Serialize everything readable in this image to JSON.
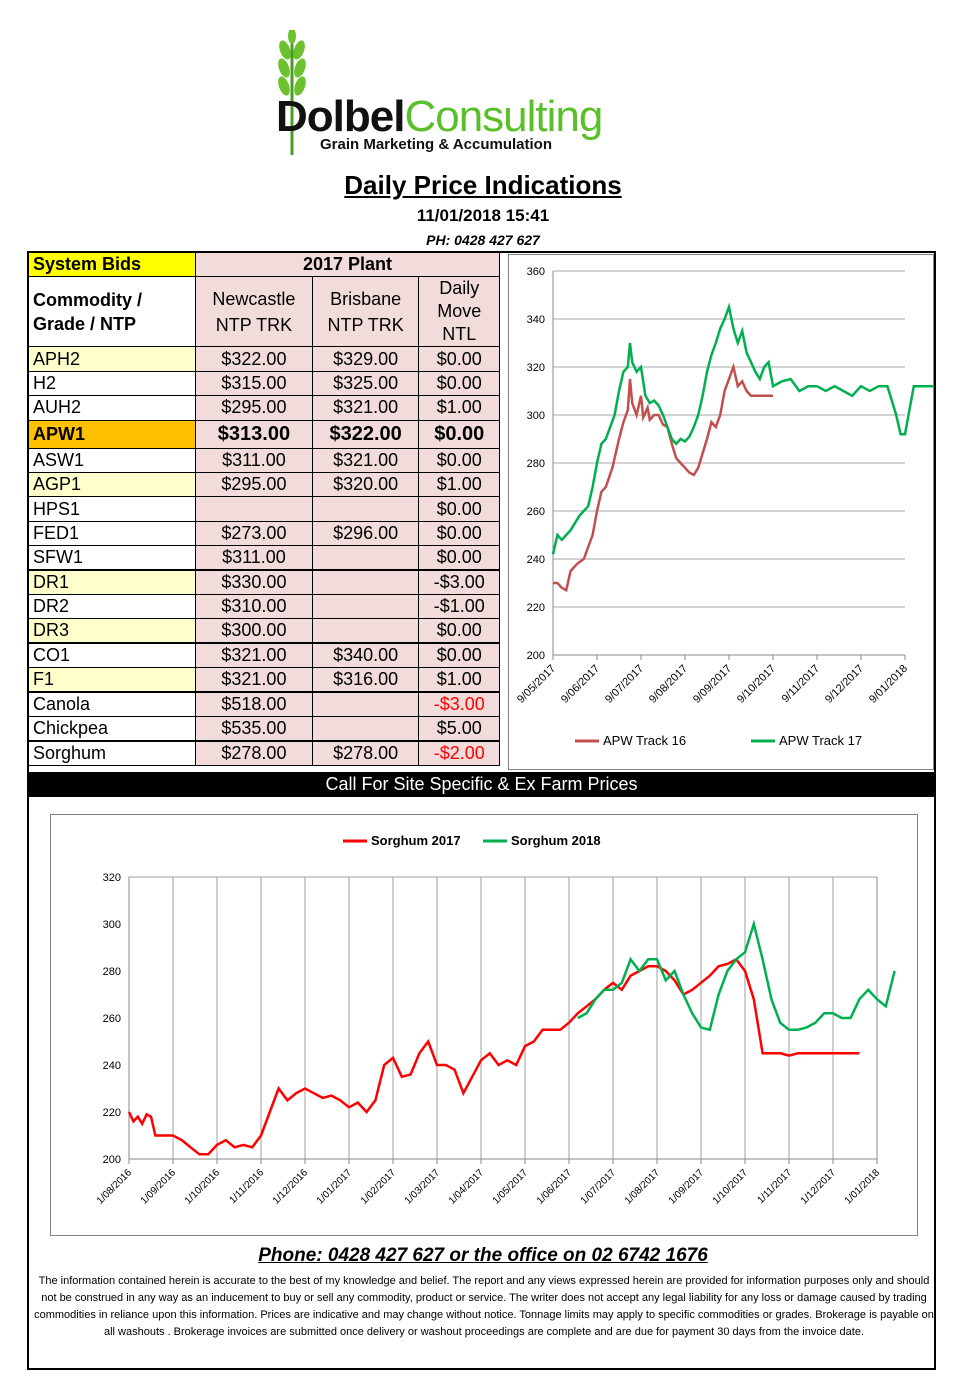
{
  "header": {
    "brand_bold": "Dolbel",
    "brand_light": "Consulting",
    "tagline": "Grain Marketing & Accumulation",
    "title": "Daily Price Indications",
    "datetime": "11/01/2018 15:41",
    "phone": "PH: 0428 427 627"
  },
  "table": {
    "system_bids": "System Bids",
    "plant": "2017 Plant",
    "col_commodity": "Commodity / Grade / NTP",
    "col_newcastle": "Newcastle NTP TRK",
    "col_brisbane": "Brisbane NTP TRK",
    "col_move": "Daily Move NTL",
    "rows": [
      {
        "grade": "APH2",
        "newcastle": "$322.00",
        "brisbane": "$329.00",
        "move": "$0.00"
      },
      {
        "grade": "H2",
        "newcastle": "$315.00",
        "brisbane": "$325.00",
        "move": "$0.00"
      },
      {
        "grade": "AUH2",
        "newcastle": "$295.00",
        "brisbane": "$321.00",
        "move": "$1.00"
      },
      {
        "grade": "APW1",
        "newcastle": "$313.00",
        "brisbane": "$322.00",
        "move": "$0.00"
      },
      {
        "grade": "ASW1",
        "newcastle": "$311.00",
        "brisbane": "$321.00",
        "move": "$0.00"
      },
      {
        "grade": "AGP1",
        "newcastle": "$295.00",
        "brisbane": "$320.00",
        "move": "$1.00"
      },
      {
        "grade": "HPS1",
        "newcastle": "",
        "brisbane": "",
        "move": "$0.00"
      },
      {
        "grade": "FED1",
        "newcastle": "$273.00",
        "brisbane": "$296.00",
        "move": "$0.00"
      },
      {
        "grade": "SFW1",
        "newcastle": "$311.00",
        "brisbane": "",
        "move": "$0.00"
      },
      {
        "grade": "DR1",
        "newcastle": "$330.00",
        "brisbane": "",
        "move": "-$3.00"
      },
      {
        "grade": "DR2",
        "newcastle": "$310.00",
        "brisbane": "",
        "move": "-$1.00"
      },
      {
        "grade": "DR3",
        "newcastle": "$300.00",
        "brisbane": "",
        "move": "$0.00"
      },
      {
        "grade": "CO1",
        "newcastle": "$321.00",
        "brisbane": "$340.00",
        "move": "$0.00"
      },
      {
        "grade": "F1",
        "newcastle": "$321.00",
        "brisbane": "$316.00",
        "move": "$1.00"
      },
      {
        "grade": "Canola",
        "newcastle": "$518.00",
        "brisbane": "",
        "move": "-$3.00"
      },
      {
        "grade": "Chickpea",
        "newcastle": "$535.00",
        "brisbane": "",
        "move": "$5.00"
      },
      {
        "grade": "Sorghum",
        "newcastle": "$278.00",
        "brisbane": "$278.00",
        "move": "-$2.00"
      }
    ]
  },
  "banner": "Call For Site Specific & Ex Farm Prices",
  "footer": {
    "phone": "Phone: 0428 427 627 or the office on 02 6742 1676",
    "disclaimer": "The information contained herein is accurate to the best of my knowledge and belief. The report and any views expressed herein are provided for information purposes only and should not be construed in any way as an inducement to buy or sell any commodity, product or service. The writer does not accept any legal liability for any loss or damage caused by trading commodities in reliance upon this information. Prices are indicative and may change without notice. Tonnage limits may apply to specific commodities or grades. Brokerage is payable on all washouts . Brokerage invoices are submitted once delivery or washout proceedings are complete and are due for payment 30 days from the invoice date."
  },
  "colors": {
    "red_series": "#c0504d",
    "green_series": "#00b050",
    "sorghum17": "#ff0000",
    "sorghum18": "#00b050"
  },
  "chart_data": [
    {
      "type": "line",
      "legend": "bottom",
      "ylim": [
        200,
        360
      ],
      "yticks": [
        200,
        220,
        240,
        260,
        280,
        300,
        320,
        340,
        360
      ],
      "xticks": [
        "9/05/2017",
        "9/06/2017",
        "9/07/2017",
        "9/08/2017",
        "9/09/2017",
        "9/10/2017",
        "9/11/2017",
        "9/12/2017",
        "9/01/2018"
      ],
      "series": [
        {
          "name": "APW Track 16",
          "color": "#c0504d",
          "x": [
            0,
            0.1,
            0.2,
            0.3,
            0.4,
            0.55,
            0.7,
            0.8,
            0.9,
            1.0,
            1.1,
            1.2,
            1.35,
            1.5,
            1.6,
            1.7,
            1.75,
            1.8,
            1.9,
            2.0,
            2.05,
            2.15,
            2.2,
            2.3,
            2.4,
            2.5,
            2.6,
            2.7,
            2.8,
            3.0,
            3.1,
            3.2,
            3.3,
            3.4,
            3.5,
            3.6,
            3.7,
            3.8,
            3.9,
            4.0,
            4.1,
            4.2,
            4.3,
            4.4,
            4.5,
            4.6,
            4.7,
            4.8,
            4.9,
            5.0
          ],
          "y": [
            230,
            230,
            228,
            227,
            235,
            238,
            240,
            245,
            250,
            260,
            268,
            270,
            278,
            290,
            297,
            302,
            315,
            305,
            300,
            308,
            299,
            303,
            298,
            300,
            300,
            296,
            295,
            288,
            282,
            278,
            276,
            275,
            278,
            284,
            290,
            297,
            295,
            300,
            310,
            315,
            320,
            312,
            314,
            310,
            308,
            308,
            308,
            308,
            308,
            308
          ]
        },
        {
          "name": "APW Track 17",
          "color": "#00b050",
          "x": [
            0,
            0.1,
            0.2,
            0.3,
            0.4,
            0.5,
            0.6,
            0.7,
            0.8,
            0.9,
            1.0,
            1.1,
            1.2,
            1.3,
            1.4,
            1.5,
            1.6,
            1.7,
            1.75,
            1.8,
            1.9,
            2.0,
            2.1,
            2.2,
            2.3,
            2.4,
            2.5,
            2.6,
            2.7,
            2.8,
            2.9,
            3.0,
            3.1,
            3.2,
            3.3,
            3.4,
            3.5,
            3.6,
            3.7,
            3.8,
            3.9,
            4.0,
            4.1,
            4.2,
            4.3,
            4.4,
            4.5,
            4.6,
            4.7,
            4.8,
            4.9,
            5.0,
            5.2,
            5.4,
            5.6,
            5.8,
            6.0,
            6.2,
            6.4,
            6.6,
            6.8,
            7.0,
            7.2,
            7.4,
            7.6,
            7.8,
            7.9,
            8.0,
            8.2,
            8.4,
            8.6,
            8.8,
            9.0
          ],
          "y": [
            242,
            250,
            248,
            250,
            252,
            255,
            258,
            260,
            262,
            270,
            280,
            288,
            290,
            295,
            300,
            310,
            318,
            320,
            330,
            322,
            318,
            320,
            308,
            305,
            306,
            304,
            300,
            295,
            290,
            288,
            290,
            289,
            291,
            295,
            300,
            308,
            318,
            325,
            330,
            336,
            340,
            345,
            336,
            330,
            335,
            326,
            322,
            318,
            315,
            320,
            322,
            312,
            314,
            315,
            310,
            312,
            312,
            310,
            312,
            310,
            308,
            312,
            310,
            312,
            312,
            300,
            292,
            292,
            312,
            312,
            312,
            312,
            312
          ]
        }
      ]
    },
    {
      "type": "line",
      "legend": "top",
      "ylim": [
        200,
        320
      ],
      "yticks": [
        200,
        220,
        240,
        260,
        280,
        300,
        320
      ],
      "xticks": [
        "1/08/2016",
        "1/09/2016",
        "1/10/2016",
        "1/11/2016",
        "1/12/2016",
        "1/01/2017",
        "1/02/2017",
        "1/03/2017",
        "1/04/2017",
        "1/05/2017",
        "1/06/2017",
        "1/07/2017",
        "1/08/2017",
        "1/09/2017",
        "1/10/2017",
        "1/11/2017",
        "1/12/2017",
        "1/01/2018"
      ],
      "series": [
        {
          "name": "Sorghum 2017",
          "color": "#ff0000",
          "x": [
            0,
            0.1,
            0.2,
            0.3,
            0.4,
            0.5,
            0.6,
            0.8,
            1.0,
            1.2,
            1.4,
            1.6,
            1.8,
            2.0,
            2.2,
            2.4,
            2.6,
            2.8,
            3.0,
            3.2,
            3.4,
            3.6,
            3.8,
            4.0,
            4.2,
            4.4,
            4.6,
            4.8,
            5.0,
            5.2,
            5.4,
            5.6,
            5.8,
            6.0,
            6.2,
            6.4,
            6.6,
            6.8,
            7.0,
            7.2,
            7.4,
            7.6,
            7.8,
            8.0,
            8.2,
            8.4,
            8.6,
            8.8,
            9.0,
            9.2,
            9.4,
            9.6,
            9.8,
            10.0,
            10.2,
            10.4,
            10.6,
            10.8,
            11.0,
            11.2,
            11.4,
            11.6,
            11.8,
            12.0,
            12.2,
            12.4,
            12.6,
            12.8,
            13.0,
            13.2,
            13.4,
            13.6,
            13.8,
            14.0,
            14.2,
            14.4,
            14.6,
            14.8,
            15.0,
            15.2,
            15.4,
            15.6,
            15.8,
            16.0,
            16.2,
            16.4,
            16.6
          ],
          "y": [
            220,
            216,
            218,
            215,
            219,
            218,
            210,
            210,
            210,
            208,
            205,
            202,
            202,
            206,
            208,
            205,
            206,
            205,
            210,
            220,
            230,
            225,
            228,
            230,
            228,
            226,
            227,
            225,
            222,
            224,
            220,
            225,
            240,
            243,
            235,
            236,
            245,
            250,
            240,
            240,
            238,
            228,
            235,
            242,
            245,
            240,
            242,
            240,
            248,
            250,
            255,
            255,
            255,
            258,
            262,
            265,
            268,
            272,
            275,
            272,
            278,
            280,
            282,
            282,
            280,
            276,
            270,
            272,
            275,
            278,
            282,
            283,
            285,
            280,
            268,
            245,
            245,
            245,
            244,
            245,
            245,
            245,
            245,
            245,
            245,
            245,
            245
          ]
        },
        {
          "name": "Sorghum 2018",
          "color": "#00b050",
          "x": [
            10.2,
            10.4,
            10.6,
            10.8,
            11.0,
            11.2,
            11.4,
            11.6,
            11.8,
            12.0,
            12.2,
            12.4,
            12.6,
            12.8,
            13.0,
            13.2,
            13.4,
            13.6,
            13.8,
            14.0,
            14.2,
            14.4,
            14.6,
            14.8,
            15.0,
            15.2,
            15.4,
            15.6,
            15.8,
            16.0,
            16.2,
            16.4,
            16.6,
            16.8,
            17.0,
            17.2,
            17.4
          ],
          "y": [
            260,
            262,
            268,
            272,
            272,
            275,
            285,
            280,
            285,
            285,
            276,
            280,
            270,
            262,
            256,
            255,
            270,
            280,
            285,
            288,
            300,
            285,
            268,
            258,
            255,
            255,
            256,
            258,
            262,
            262,
            260,
            260,
            268,
            272,
            268,
            265,
            280
          ]
        }
      ]
    }
  ]
}
